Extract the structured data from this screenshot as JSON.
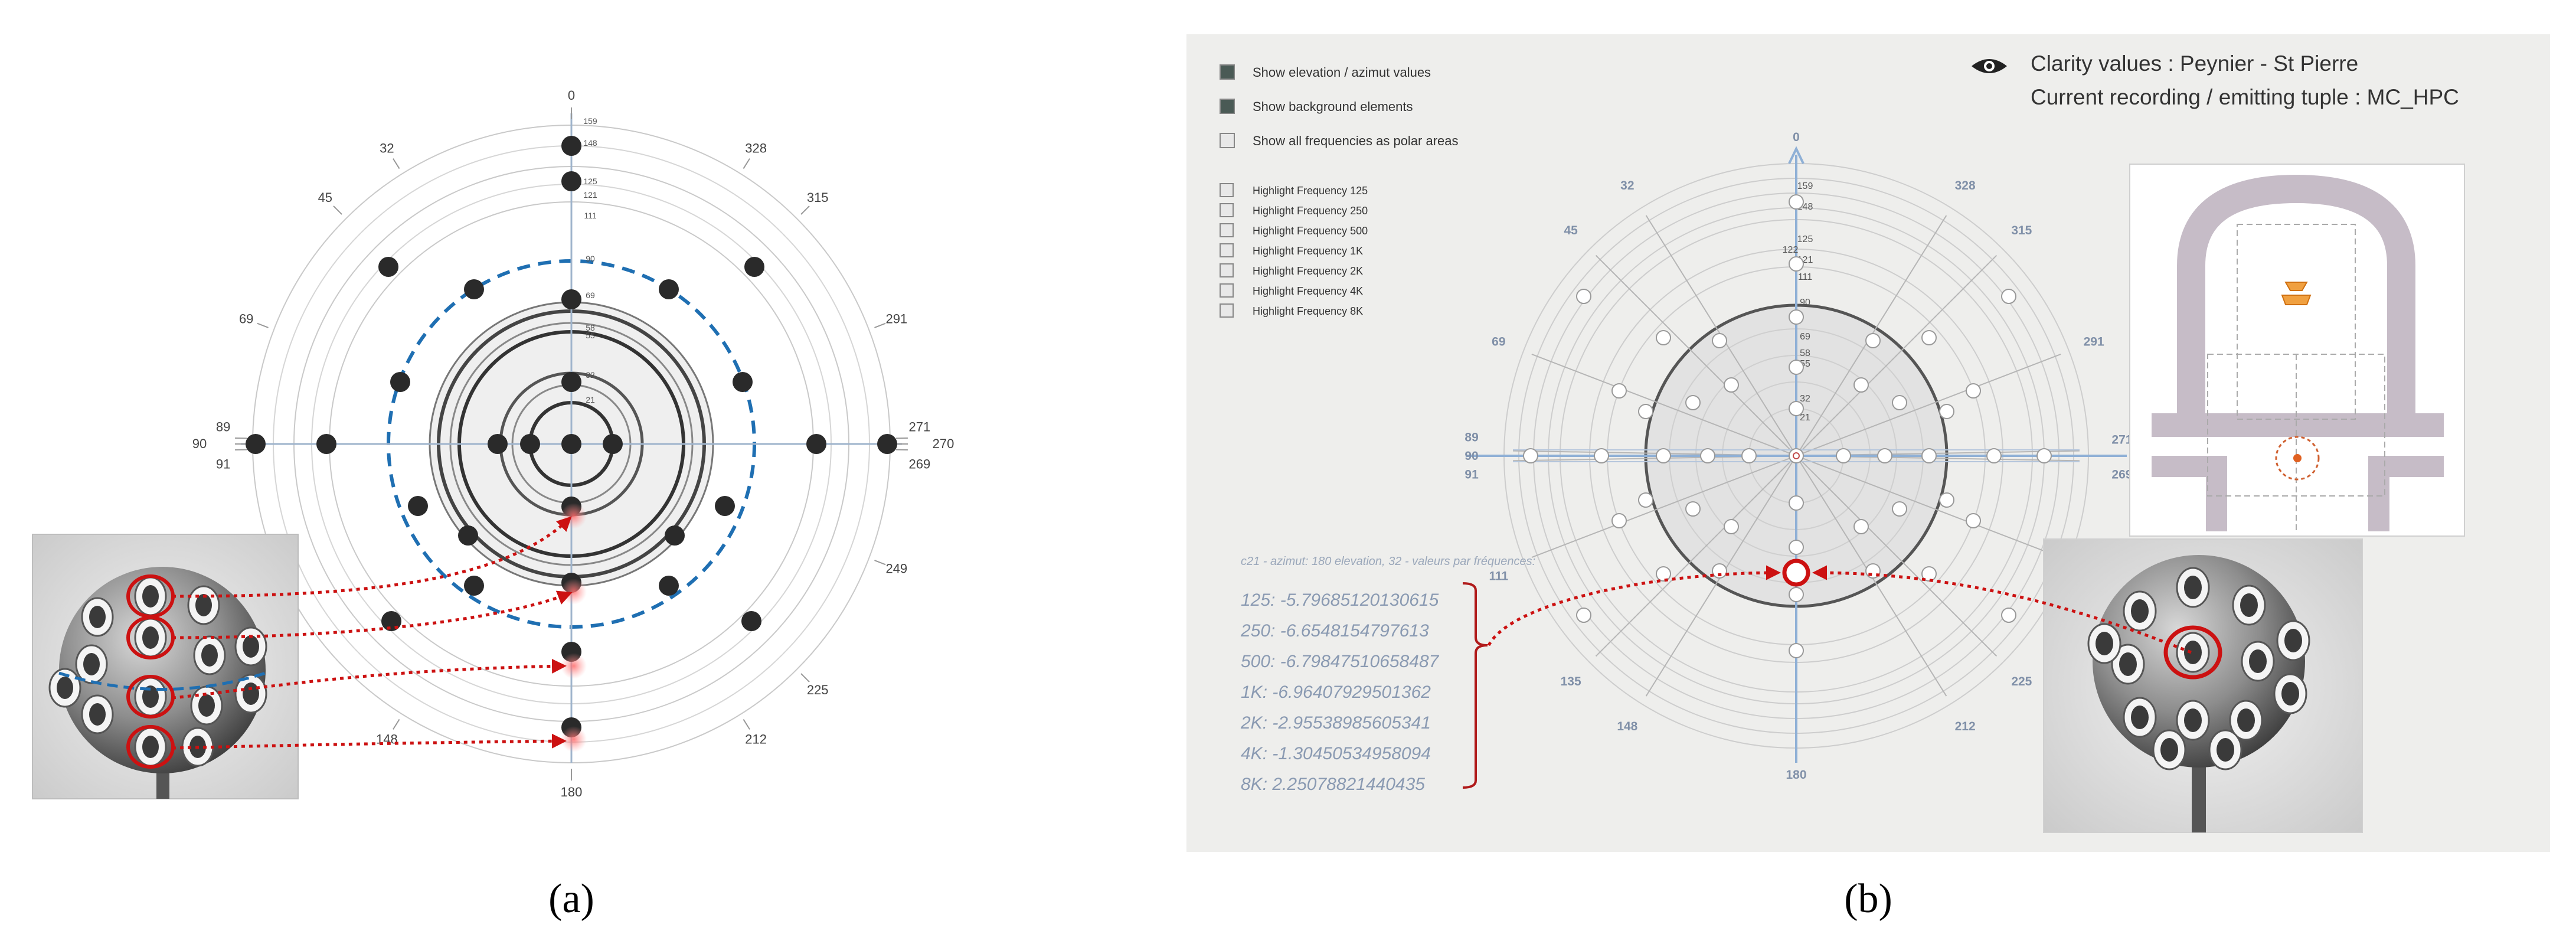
{
  "captions": {
    "a": "(a)",
    "b": "(b)"
  },
  "panel_a": {
    "angles": [
      {
        "label": "0",
        "deg": 0
      },
      {
        "label": "32",
        "deg": 32
      },
      {
        "label": "45",
        "deg": 45
      },
      {
        "label": "69",
        "deg": 69
      },
      {
        "label": "89",
        "deg": 89
      },
      {
        "label": "90",
        "deg": 90
      },
      {
        "label": "91",
        "deg": 91
      },
      {
        "label": "148",
        "deg": 148
      },
      {
        "label": "180",
        "deg": 180
      },
      {
        "label": "212",
        "deg": 212
      },
      {
        "label": "225",
        "deg": 225
      },
      {
        "label": "249",
        "deg": 249
      },
      {
        "label": "269",
        "deg": 269
      },
      {
        "label": "270",
        "deg": 270
      },
      {
        "label": "271",
        "deg": 271
      },
      {
        "label": "291",
        "deg": 291
      },
      {
        "label": "315",
        "deg": 315
      },
      {
        "label": "328",
        "deg": 328
      }
    ],
    "ring_labels": [
      "159",
      "148",
      "125",
      "121",
      "111",
      "90",
      "69",
      "58",
      "55",
      "32",
      "21"
    ]
  },
  "panel_b": {
    "title": "Clarity values : Peynier - St Pierre",
    "subtitle": "Current recording / emitting tuple : MC_HPC",
    "checkboxes": [
      {
        "label": "Show elevation / azimut values",
        "checked": true
      },
      {
        "label": "Show background elements",
        "checked": true
      },
      {
        "label": "Show all frequencies as polar areas",
        "checked": false
      }
    ],
    "freq_checkboxes": [
      "Highlight Frequency 125",
      "Highlight Frequency 250",
      "Highlight Frequency 500",
      "Highlight Frequency 1K",
      "Highlight Frequency 2K",
      "Highlight Frequency 4K",
      "Highlight Frequency 8K"
    ],
    "info_header": "c21 - azimut: 180 elevation, 32 - valeurs par fréquences:",
    "values": [
      "125: -5.79685120130615",
      "250: -6.6548154797613",
      "500: -6.79847510658487",
      "1K: -6.96407929501362",
      "2K: -2.95538985605341",
      "4K: -1.30450534958094",
      "8K: 2.25078821440435"
    ],
    "angles": [
      {
        "label": "0",
        "deg": 0
      },
      {
        "label": "32",
        "deg": 32
      },
      {
        "label": "45",
        "deg": 45
      },
      {
        "label": "69",
        "deg": 69
      },
      {
        "label": "89",
        "deg": 89
      },
      {
        "label": "90",
        "deg": 90
      },
      {
        "label": "91",
        "deg": 91
      },
      {
        "label": "111",
        "deg": 111
      },
      {
        "label": "135",
        "deg": 135
      },
      {
        "label": "148",
        "deg": 148
      },
      {
        "label": "180",
        "deg": 180
      },
      {
        "label": "212",
        "deg": 212
      },
      {
        "label": "225",
        "deg": 225
      },
      {
        "label": "269",
        "deg": 269
      },
      {
        "label": "271",
        "deg": 271
      },
      {
        "label": "291",
        "deg": 291
      },
      {
        "label": "315",
        "deg": 315
      },
      {
        "label": "328",
        "deg": 328
      }
    ],
    "ring_labels": [
      "159",
      "148",
      "125",
      "121",
      "122",
      "111",
      "90",
      "69",
      "58",
      "55",
      "32",
      "21"
    ]
  },
  "colors": {
    "dot": "#2a2a2a",
    "dashed": "#1f6fb2",
    "red": "#cc1111",
    "panel_bg": "#eeeeec",
    "value_text": "#8a9ab2",
    "axis_label": "#8090a8"
  }
}
